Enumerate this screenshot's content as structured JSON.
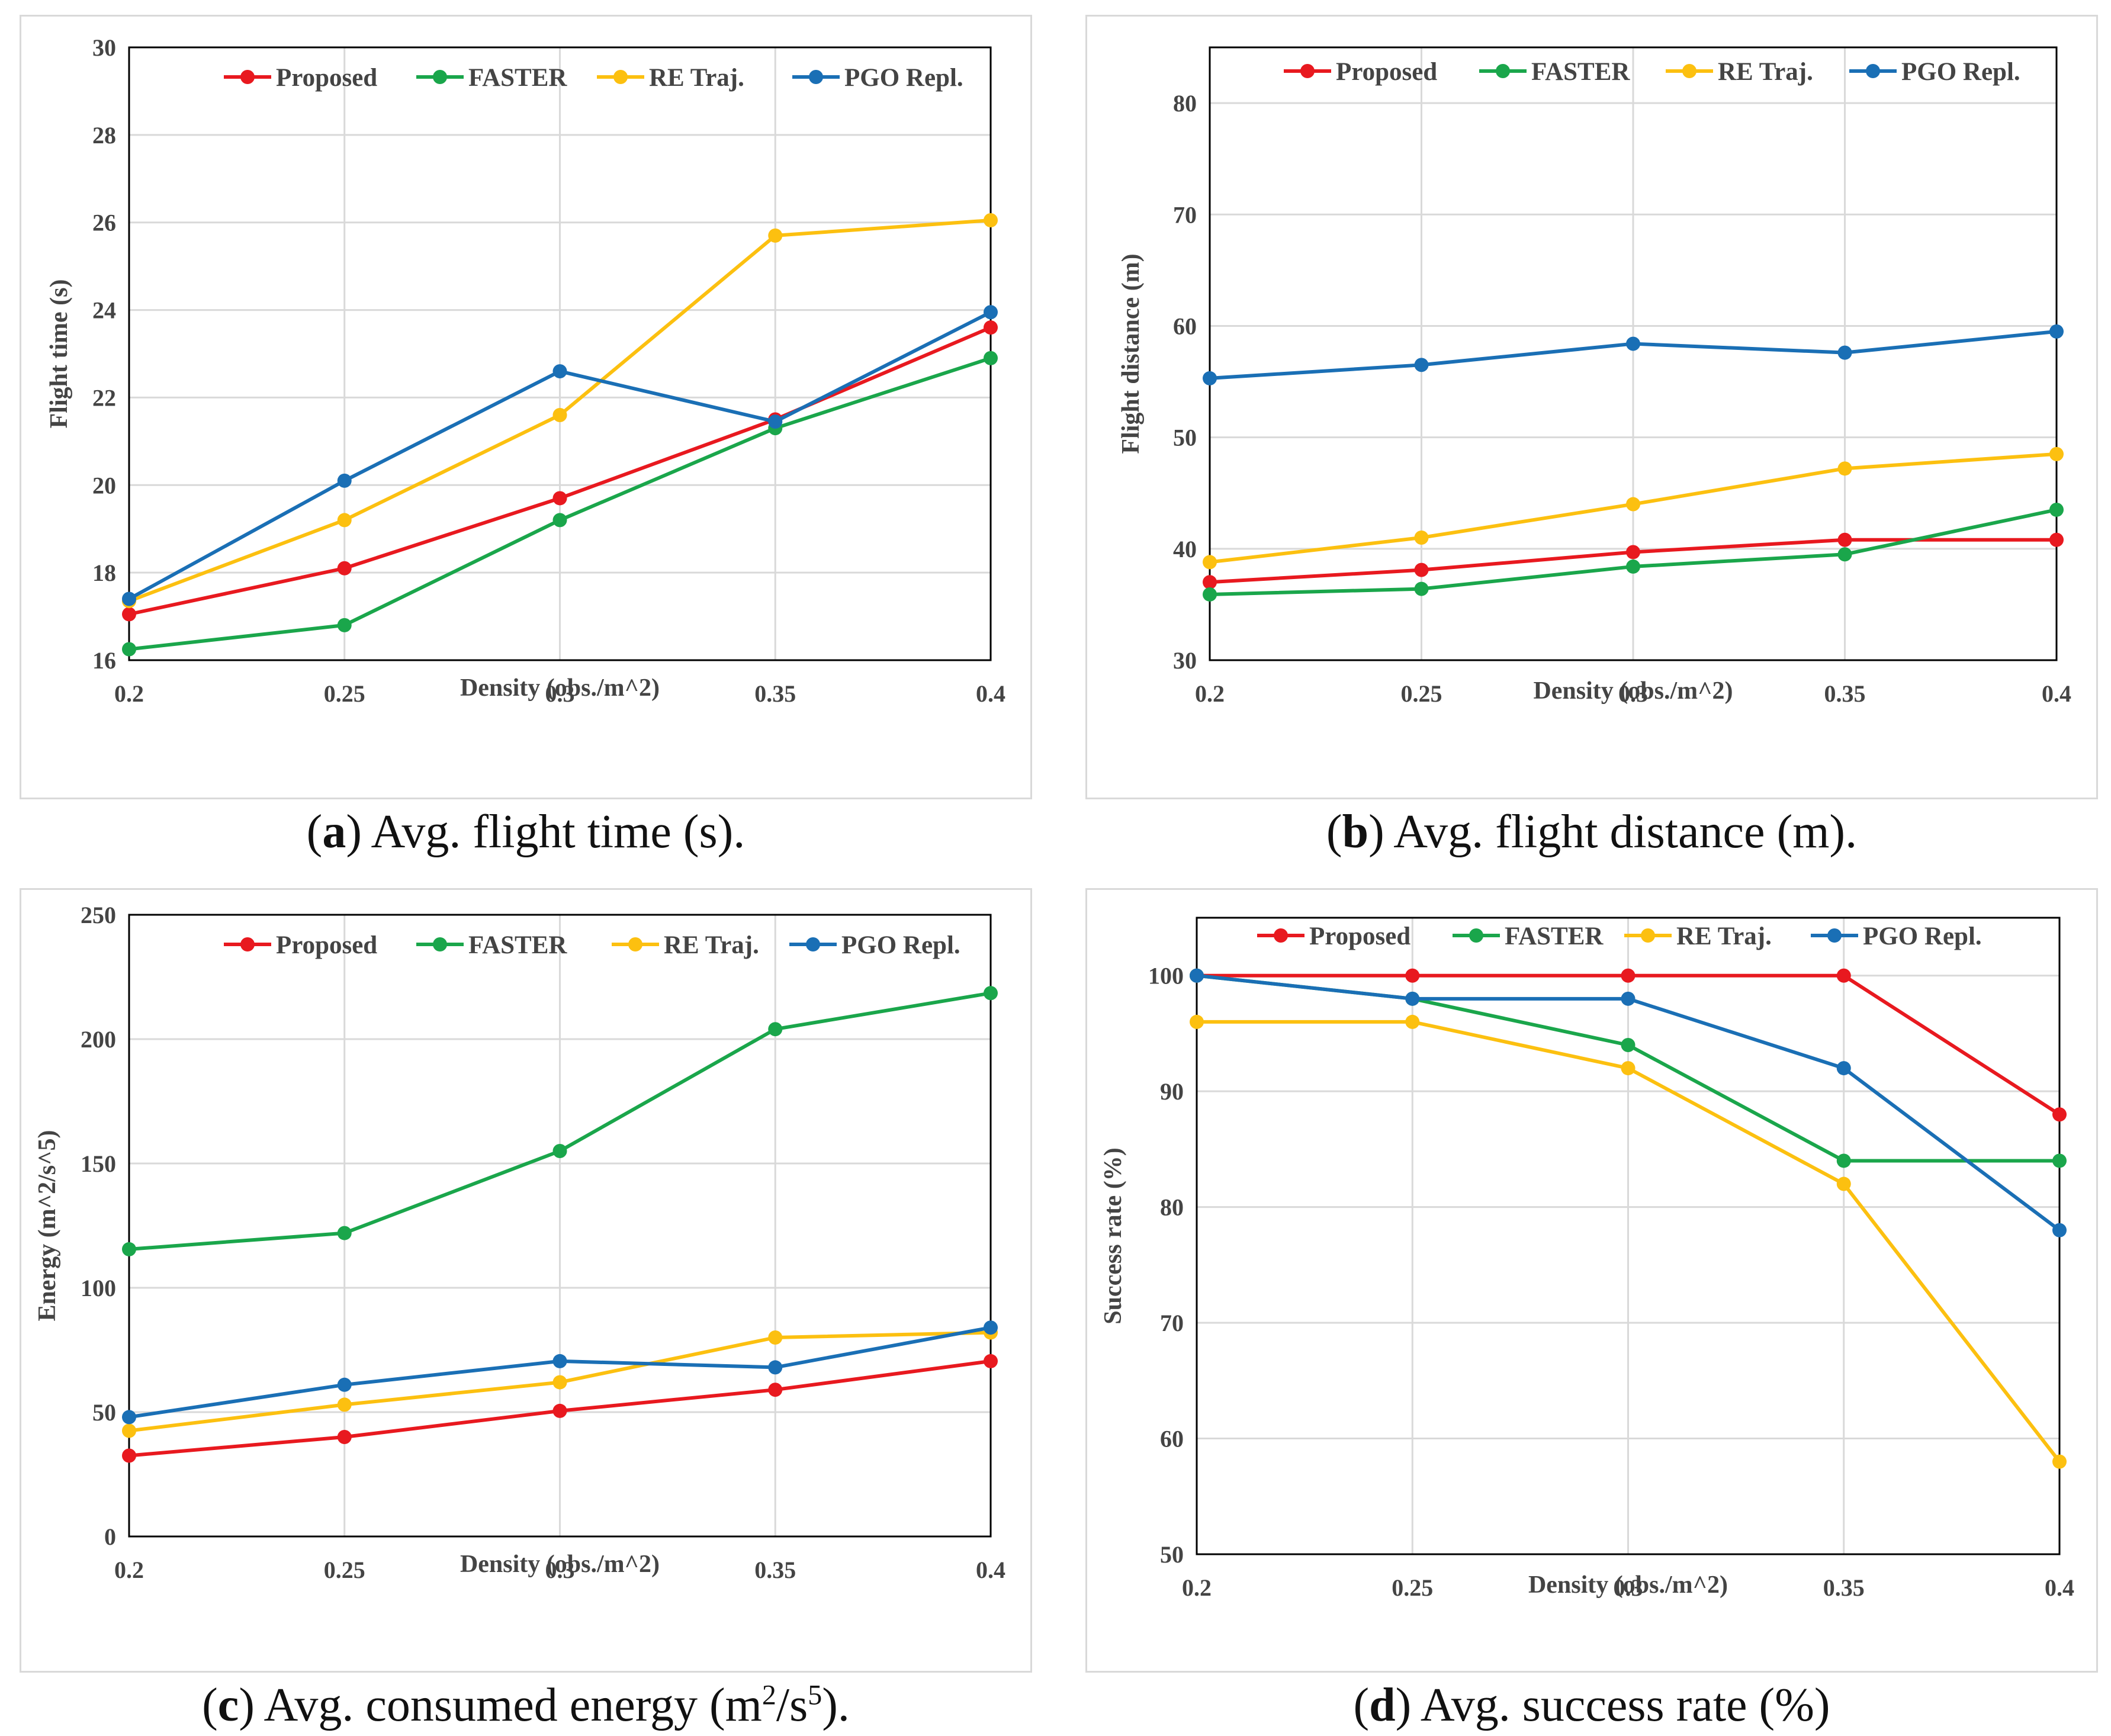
{
  "chart_data": [
    {
      "type": "line",
      "panel_label": "a",
      "caption": "Avg. flight time (s).",
      "title": "",
      "xlabel": "Density (obs./m^2)",
      "ylabel": "Flight time (s)",
      "categories": [
        "0.2",
        "0.25",
        "0.3",
        "0.35",
        "0.4"
      ],
      "ylim": [
        16,
        30
      ],
      "yticks": [
        16,
        18,
        20,
        22,
        24,
        26,
        28,
        30
      ],
      "series": [
        {
          "name": "Proposed",
          "color": "#e8191f",
          "values": [
            17.05,
            18.1,
            19.7,
            21.5,
            23.6
          ]
        },
        {
          "name": "FASTER",
          "color": "#1aa64b",
          "values": [
            16.25,
            16.8,
            19.2,
            21.3,
            22.9
          ]
        },
        {
          "name": "RE Traj.",
          "color": "#fcc010",
          "values": [
            17.35,
            19.2,
            21.6,
            25.7,
            26.05
          ]
        },
        {
          "name": "PGO Repl.",
          "color": "#1a6fb5",
          "values": [
            17.4,
            20.1,
            22.6,
            21.45,
            23.95
          ]
        }
      ]
    },
    {
      "type": "line",
      "panel_label": "b",
      "caption": "Avg. flight distance (m).",
      "title": "",
      "xlabel": "Density (obs./m^2)",
      "ylabel": "Flight distance (m)",
      "categories": [
        "0.2",
        "0.25",
        "0.3",
        "0.35",
        "0.4"
      ],
      "ylim": [
        30,
        85
      ],
      "yticks": [
        30,
        40,
        50,
        60,
        70,
        80
      ],
      "series": [
        {
          "name": "Proposed",
          "color": "#e8191f",
          "values": [
            37.0,
            38.1,
            39.7,
            40.8,
            40.8
          ]
        },
        {
          "name": "FASTER",
          "color": "#1aa64b",
          "values": [
            35.9,
            36.4,
            38.4,
            39.5,
            43.5
          ]
        },
        {
          "name": "RE Traj.",
          "color": "#fcc010",
          "values": [
            38.8,
            41.0,
            44.0,
            47.2,
            48.5
          ]
        },
        {
          "name": "PGO Repl.",
          "color": "#1a6fb5",
          "values": [
            55.3,
            56.5,
            58.4,
            57.6,
            59.5
          ]
        }
      ]
    },
    {
      "type": "line",
      "panel_label": "c",
      "caption_prefix": "Avg. consumed energy (m",
      "caption_sup1": "2",
      "caption_mid": "/s",
      "caption_sup2": "5",
      "caption_suffix": ").",
      "title": "",
      "xlabel": "Density (obs./m^2)",
      "ylabel": "Energy (m^2/s^5)",
      "categories": [
        "0.2",
        "0.25",
        "0.3",
        "0.35",
        "0.4"
      ],
      "ylim": [
        0,
        250
      ],
      "yticks": [
        0,
        50,
        100,
        150,
        200,
        250
      ],
      "series": [
        {
          "name": "Proposed",
          "color": "#e8191f",
          "values": [
            32.5,
            40.0,
            50.5,
            59.0,
            70.5
          ]
        },
        {
          "name": "FASTER",
          "color": "#1aa64b",
          "values": [
            115.5,
            122.0,
            155.0,
            204.0,
            218.5
          ]
        },
        {
          "name": "RE Traj.",
          "color": "#fcc010",
          "values": [
            42.5,
            53.0,
            62.0,
            80.0,
            82.0
          ]
        },
        {
          "name": "PGO Repl.",
          "color": "#1a6fb5",
          "values": [
            48.0,
            61.0,
            70.5,
            68.0,
            84.0
          ]
        }
      ]
    },
    {
      "type": "line",
      "panel_label": "d",
      "caption": "Avg. success rate (%)",
      "title": "",
      "xlabel": "Density (obs./m^2)",
      "ylabel": "Success rate (%)",
      "categories": [
        "0.2",
        "0.25",
        "0.3",
        "0.35",
        "0.4"
      ],
      "ylim": [
        50,
        105
      ],
      "yticks": [
        50,
        60,
        70,
        80,
        90,
        100
      ],
      "series": [
        {
          "name": "Proposed",
          "color": "#e8191f",
          "values": [
            100,
            100,
            100,
            100,
            88
          ]
        },
        {
          "name": "FASTER",
          "color": "#1aa64b",
          "values": [
            100,
            98,
            94,
            84,
            84
          ]
        },
        {
          "name": "RE Traj.",
          "color": "#fcc010",
          "values": [
            96,
            96,
            92,
            82,
            58
          ]
        },
        {
          "name": "PGO Repl.",
          "color": "#1a6fb5",
          "values": [
            100,
            98,
            98,
            92,
            78
          ]
        }
      ]
    }
  ]
}
